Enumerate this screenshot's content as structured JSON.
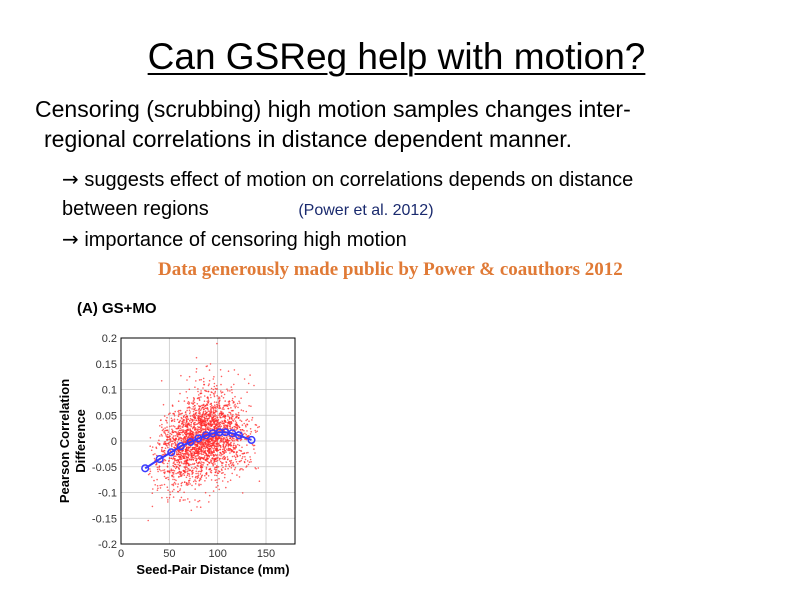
{
  "slide": {
    "title": "Can GSReg help with motion?",
    "bullet_line1": "Censoring (scrubbing) high motion samples changes inter-",
    "bullet_line2": "regional correlations in distance dependent manner.",
    "sub_line1": "suggests effect of motion on correlations depends on distance",
    "sub_line2": "between regions",
    "citation": "(Power et al. 2012)",
    "sub_line3": "importance of censoring high motion",
    "arrow_icon": "right-arrow-icon",
    "credit": "Data generously made public by Power & coauthors 2012",
    "credit_color": "#e07a36"
  },
  "chart_data": {
    "type": "scatter",
    "title": "(A) GS+MO",
    "xlabel": "Seed-Pair Distance (mm)",
    "ylabel_line1": "Pearson Correlation",
    "ylabel_line2": "Difference",
    "xlim": [
      0,
      180
    ],
    "ylim": [
      -0.2,
      0.2
    ],
    "x_ticks": [
      0,
      50,
      100,
      150
    ],
    "y_ticks": [
      0.2,
      0.15,
      0.1,
      0.05,
      0,
      -0.05,
      -0.1,
      -0.15,
      -0.2
    ],
    "y_tick_labels": [
      "0.2",
      "0.15",
      "0.1",
      "0.05",
      "0",
      "-0.05",
      "-0.1",
      "-0.15",
      "-0.2"
    ],
    "grid": true,
    "scatter_color": "#ff2a2a",
    "trend_color": "#3a3aff",
    "scatter_series": {
      "x_range": [
        20,
        150
      ],
      "center_curve": "matches trend",
      "spread_sd": 0.04
    },
    "trend_series": {
      "x": [
        25,
        40,
        52,
        62,
        72,
        80,
        88,
        95,
        102,
        108,
        115,
        122,
        135
      ],
      "y": [
        -0.053,
        -0.035,
        -0.022,
        -0.01,
        -0.002,
        0.005,
        0.011,
        0.015,
        0.017,
        0.017,
        0.015,
        0.011,
        0.002
      ]
    }
  }
}
